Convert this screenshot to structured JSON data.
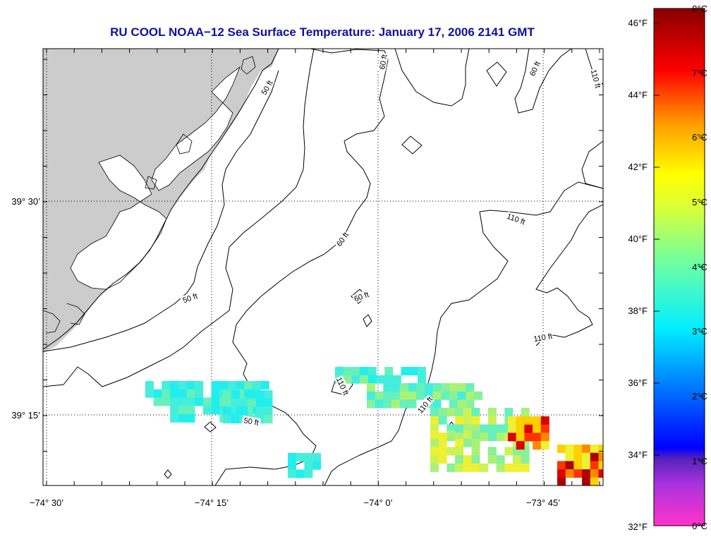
{
  "title": "RU COOL  NOAA−12  Sea Surface Temperature:  January 17, 2006 2141 GMT",
  "axes": {
    "lat_labels": [
      "39° 30’",
      "39° 15’"
    ],
    "lon_labels": [
      "−74° 30’",
      "−74° 15’",
      "−74° 0’",
      "−73° 45’"
    ]
  },
  "contour_labels": [
    "50 ft",
    "50 ft",
    "60 ft",
    "60 ft",
    "60 ft",
    "60 ft",
    "110 ft",
    "110 ft",
    "110 ft",
    "110 ft",
    "110 ft",
    "50 ft"
  ],
  "colorbar": {
    "f_labels": [
      "46°F",
      "44°F",
      "42°F",
      "40°F",
      "38°F",
      "36°F",
      "34°F",
      "32°F"
    ],
    "c_labels": [
      "8°C",
      "7°C",
      "6°C",
      "5°C",
      "4°C",
      "3°C",
      "2°C",
      "1°C",
      "0°C"
    ],
    "colors": [
      "#ff33cc",
      "#6622bb",
      "#0000ff",
      "#00aaff",
      "#00ffee",
      "#77ff88",
      "#ffff00",
      "#ff9900",
      "#ff0000",
      "#880000"
    ]
  },
  "colors": {
    "land": "#cccccc",
    "title": "#1010a0"
  }
}
